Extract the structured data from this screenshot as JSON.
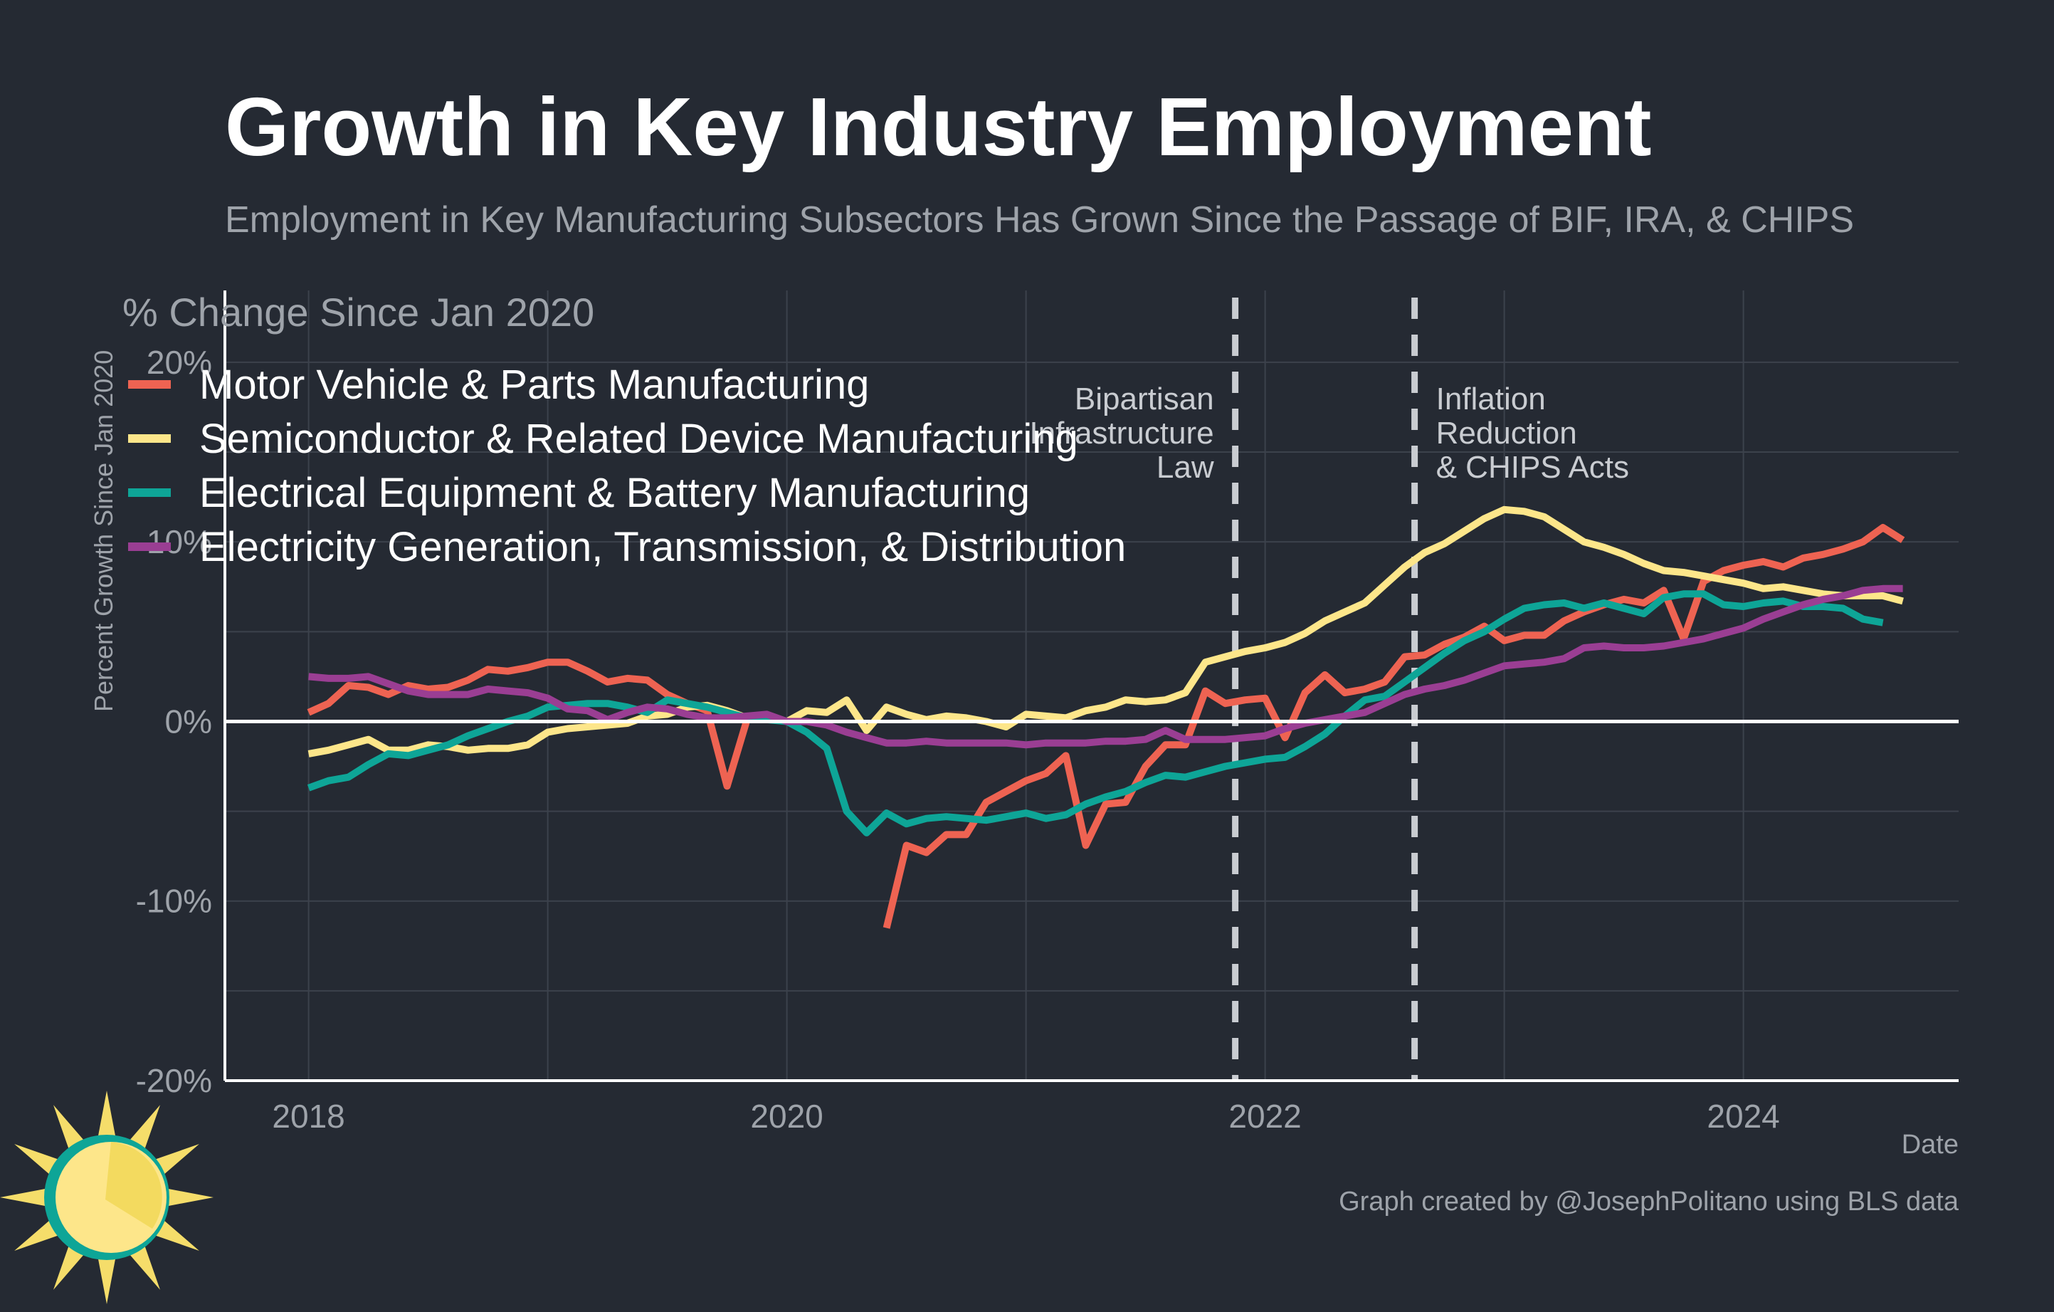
{
  "title": "Growth in Key Industry Employment",
  "subtitle": "Employment in Key Manufacturing Subsectors Has Grown Since the Passage of BIF, IRA, & CHIPS",
  "ylabel": "Percent Growth Since Jan 2020",
  "yaxis_title_inner": "% Change Since Jan 2020",
  "xlabel": "Date",
  "caption": "Graph created by @JosephPolitano using BLS data",
  "logo": "sun-logo",
  "colors": {
    "background": "#252a33",
    "grid": "#3c424c",
    "axis": "#ffffff",
    "muted_text": "#9ea3aa",
    "annotation_line": "#c9ccd1"
  },
  "chart_data": {
    "type": "line",
    "x_unit": "decimal year (monthly observations)",
    "xlim": [
      2017.65,
      2024.9
    ],
    "ylim": [
      -20,
      24
    ],
    "x_ticks": [
      2018,
      2020,
      2022,
      2024
    ],
    "x_tick_labels": [
      "2018",
      "2020",
      "2022",
      "2024"
    ],
    "y_ticks": [
      -20,
      -10,
      0,
      10,
      20
    ],
    "y_tick_labels": [
      "-20%",
      "-10%",
      "0%",
      "10%",
      "20%"
    ],
    "grid": true,
    "legend_position": "top-left",
    "zero_line": 0,
    "annotations": [
      {
        "id": "bif",
        "x": 2021.875,
        "lines": [
          "Bipartisan",
          "Infrastructure",
          "Law"
        ],
        "anchor": "end"
      },
      {
        "id": "ira",
        "x": 2022.625,
        "lines": [
          "Inflation",
          "Reduction",
          "& CHIPS Acts"
        ],
        "anchor": "start"
      }
    ],
    "series": [
      {
        "name": "Motor Vehicle & Parts Manufacturing",
        "color": "#ee6352",
        "start": 2018.0,
        "values": [
          0.5,
          1.0,
          2.0,
          1.9,
          1.5,
          2.0,
          1.8,
          1.9,
          2.3,
          2.9,
          2.8,
          3.0,
          3.3,
          3.3,
          2.8,
          2.2,
          2.4,
          2.3,
          1.5,
          1.0,
          0.6,
          -3.6,
          0.1,
          0.3,
          0.0,
          null,
          null,
          null,
          null,
          -11.5,
          -6.9,
          -7.3,
          -6.3,
          -6.3,
          -4.5,
          -3.9,
          -3.3,
          -2.9,
          -1.9,
          -6.9,
          -4.6,
          -4.5,
          -2.5,
          -1.3,
          -1.3,
          1.7,
          1.0,
          1.2,
          1.3,
          -0.9,
          1.6,
          2.6,
          1.6,
          1.8,
          2.2,
          3.6,
          3.7,
          4.3,
          4.7,
          5.3,
          4.5,
          4.8,
          4.8,
          5.6,
          6.1,
          6.5,
          6.8,
          6.6,
          7.3,
          4.6,
          7.8,
          8.4,
          8.7,
          8.9,
          8.6,
          9.1,
          9.3,
          9.6,
          10.0,
          10.8,
          10.1
        ]
      },
      {
        "name": "Semiconductor & Related Device Manufacturing",
        "color": "#fde68a",
        "start": 2018.0,
        "values": [
          -1.8,
          -1.6,
          -1.3,
          -1.0,
          -1.6,
          -1.6,
          -1.3,
          -1.4,
          -1.6,
          -1.5,
          -1.5,
          -1.3,
          -0.6,
          -0.4,
          -0.3,
          -0.2,
          -0.1,
          0.3,
          0.4,
          0.8,
          0.9,
          0.6,
          0.2,
          0.2,
          0.0,
          0.6,
          0.5,
          1.2,
          -0.5,
          0.8,
          0.4,
          0.1,
          0.3,
          0.2,
          0.0,
          -0.3,
          0.4,
          0.3,
          0.2,
          0.6,
          0.8,
          1.2,
          1.1,
          1.2,
          1.6,
          3.3,
          3.6,
          3.9,
          4.1,
          4.4,
          4.9,
          5.6,
          6.1,
          6.6,
          7.6,
          8.6,
          9.4,
          9.9,
          10.6,
          11.3,
          11.8,
          11.7,
          11.4,
          10.7,
          10.0,
          9.7,
          9.3,
          8.8,
          8.4,
          8.3,
          8.1,
          7.9,
          7.7,
          7.4,
          7.5,
          7.3,
          7.1,
          7.0,
          7.0,
          7.0,
          6.7
        ]
      },
      {
        "name": "Electrical Equipment & Battery Manufacturing",
        "color": "#0ea597",
        "start": 2018.0,
        "values": [
          -3.7,
          -3.3,
          -3.1,
          -2.4,
          -1.8,
          -1.9,
          -1.6,
          -1.3,
          -0.8,
          -0.4,
          0.0,
          0.3,
          0.8,
          0.9,
          1.0,
          1.0,
          0.8,
          0.5,
          1.2,
          1.0,
          0.8,
          0.5,
          0.2,
          0.1,
          0.0,
          -0.6,
          -1.5,
          -5.0,
          -6.2,
          -5.1,
          -5.7,
          -5.4,
          -5.3,
          -5.4,
          -5.5,
          -5.3,
          -5.1,
          -5.4,
          -5.2,
          -4.6,
          -4.2,
          -3.9,
          -3.4,
          -3.0,
          -3.1,
          -2.8,
          -2.5,
          -2.3,
          -2.1,
          -2.0,
          -1.4,
          -0.7,
          0.3,
          1.2,
          1.4,
          2.2,
          3.0,
          3.8,
          4.5,
          5.0,
          5.7,
          6.3,
          6.5,
          6.6,
          6.3,
          6.6,
          6.3,
          6.0,
          6.9,
          7.1,
          7.1,
          6.5,
          6.4,
          6.6,
          6.7,
          6.4,
          6.4,
          6.3,
          5.7,
          5.5
        ]
      },
      {
        "name": "Electricity Generation, Transmission, & Distribution",
        "color": "#9a3e93",
        "start": 2018.0,
        "values": [
          2.5,
          2.4,
          2.4,
          2.5,
          2.1,
          1.7,
          1.5,
          1.5,
          1.5,
          1.8,
          1.7,
          1.6,
          1.3,
          0.7,
          0.6,
          0.1,
          0.5,
          0.8,
          0.7,
          0.4,
          0.2,
          0.2,
          0.3,
          0.4,
          0.0,
          0.0,
          -0.2,
          -0.6,
          -0.9,
          -1.2,
          -1.2,
          -1.1,
          -1.2,
          -1.2,
          -1.2,
          -1.2,
          -1.3,
          -1.2,
          -1.2,
          -1.2,
          -1.1,
          -1.1,
          -1.0,
          -0.5,
          -1.0,
          -1.0,
          -1.0,
          -0.9,
          -0.8,
          -0.4,
          -0.1,
          0.1,
          0.3,
          0.5,
          1.0,
          1.5,
          1.8,
          2.0,
          2.3,
          2.7,
          3.1,
          3.2,
          3.3,
          3.5,
          4.1,
          4.2,
          4.1,
          4.1,
          4.2,
          4.4,
          4.6,
          4.9,
          5.2,
          5.7,
          6.1,
          6.5,
          6.8,
          7.0,
          7.3,
          7.4,
          7.4
        ]
      }
    ]
  }
}
